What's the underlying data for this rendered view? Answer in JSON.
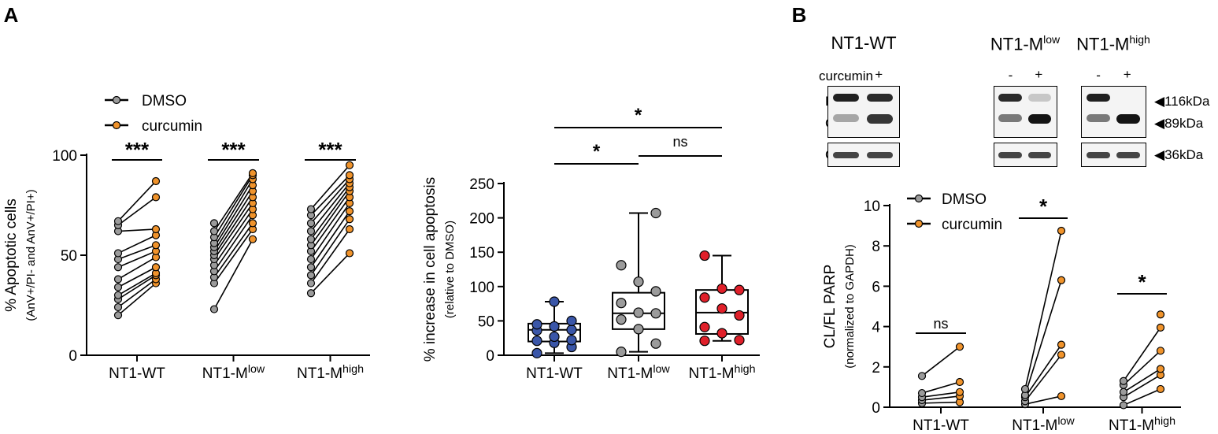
{
  "panelA": {
    "label": "A",
    "left": {
      "legend": [
        "DMSO",
        "curcumin"
      ],
      "ylabel_main": "% Apoptotic cells",
      "ylabel_sub": "(AnV+/PI- and AnV+/PI+)",
      "yticks": [
        "0",
        "50",
        "100"
      ],
      "groups": [
        {
          "name": "NT1-WT",
          "sig": "***"
        },
        {
          "name": "NT1-Mlow",
          "sig": "***"
        },
        {
          "name": "NT1-Mhigh",
          "sig": "***"
        }
      ]
    },
    "right": {
      "ylabel_main": "% increase in cell apoptosis",
      "ylabel_sub": "(relative to DMSO)",
      "yticks": [
        "0",
        "50",
        "100",
        "150",
        "200",
        "250"
      ],
      "groups": [
        "NT1-WT",
        "NT1-Mlow",
        "NT1-Mhigh"
      ],
      "brackets": [
        "*",
        "ns",
        "*"
      ]
    }
  },
  "panelB": {
    "label": "B",
    "blot": {
      "groups": [
        "NT1-WT",
        "NT1-Mlow",
        "NT1-Mhigh"
      ],
      "treatment_label": "curcumin",
      "signs": [
        "-",
        "+"
      ],
      "rows": [
        "FL PARP",
        "CL PARP",
        "GAPDH"
      ],
      "sizes": [
        "116kDa",
        "89kDa",
        "36kDa"
      ]
    },
    "chart": {
      "legend": [
        "DMSO",
        "curcumin"
      ],
      "ylabel_main": "CL/FL PARP",
      "ylabel_sub": "(normalized to GAPDH)",
      "yticks": [
        "0",
        "2",
        "4",
        "6",
        "8",
        "10"
      ],
      "groups": [
        {
          "name": "NT1-WT",
          "sig": "ns"
        },
        {
          "name": "NT1-Mlow",
          "sig": "*"
        },
        {
          "name": "NT1-Mhigh",
          "sig": "*"
        }
      ]
    }
  },
  "colors": {
    "dmso": "#9b9b9b",
    "curcumin": "#f0932b",
    "wt": "#3a56a8",
    "mlow": "#9b9b9b",
    "mhigh": "#e0202a"
  },
  "chart_data": [
    {
      "type": "scatter",
      "title": "",
      "ylabel": "% Apoptotic cells (AnV+/PI- and AnV+/PI+)",
      "ylim": [
        0,
        100
      ],
      "categories": [
        "NT1-WT",
        "NT1-Mlow",
        "NT1-Mhigh"
      ],
      "pairs": [
        {
          "group": "NT1-WT",
          "dmso": [
            20,
            24,
            28,
            30,
            34,
            38,
            44,
            48,
            51,
            62,
            65,
            67
          ],
          "curcumin": [
            36,
            38,
            40,
            41,
            44,
            49,
            52,
            55,
            60,
            63,
            79,
            87
          ]
        },
        {
          "group": "NT1-Mlow",
          "dmso": [
            23,
            36,
            39,
            42,
            45,
            48,
            50,
            52,
            54,
            56,
            59,
            62,
            66
          ],
          "curcumin": [
            58,
            63,
            66,
            70,
            73,
            76,
            79,
            82,
            85,
            88,
            90,
            91
          ]
        },
        {
          "group": "NT1-Mhigh",
          "dmso": [
            31,
            36,
            40,
            44,
            48,
            52,
            55,
            58,
            62,
            66,
            70,
            73
          ],
          "curcumin": [
            51,
            63,
            68,
            72,
            76,
            79,
            82,
            84,
            86,
            88,
            90,
            95
          ]
        }
      ]
    },
    {
      "type": "box",
      "title": "",
      "ylabel": "% increase in cell apoptosis (relative to DMSO)",
      "ylim": [
        0,
        250
      ],
      "categories": [
        "NT1-WT",
        "NT1-Mlow",
        "NT1-Mhigh"
      ],
      "series": [
        {
          "group": "NT1-WT",
          "min": 3,
          "q1": 20,
          "median": 37,
          "q3": 46,
          "max": 78,
          "points": [
            3,
            12,
            18,
            21,
            22,
            27,
            36,
            37,
            42,
            45,
            50,
            78
          ]
        },
        {
          "group": "NT1-Mlow",
          "min": 5,
          "q1": 38,
          "median": 61,
          "q3": 91,
          "max": 207,
          "points": [
            5,
            17,
            38,
            52,
            61,
            62,
            76,
            93,
            107,
            131,
            207
          ]
        },
        {
          "group": "NT1-Mhigh",
          "min": 21,
          "q1": 31,
          "median": 62,
          "q3": 95,
          "max": 145,
          "points": [
            21,
            22,
            32,
            41,
            58,
            68,
            84,
            95,
            97,
            145
          ]
        }
      ]
    },
    {
      "type": "scatter",
      "title": "",
      "ylabel": "CL/FL PARP (normalized to GAPDH)",
      "ylim": [
        0,
        10
      ],
      "categories": [
        "NT1-WT",
        "NT1-Mlow",
        "NT1-Mhigh"
      ],
      "pairs": [
        {
          "group": "NT1-WT",
          "dmso": [
            0.2,
            0.35,
            0.5,
            0.7,
            1.55
          ],
          "curcumin": [
            0.25,
            0.55,
            0.75,
            1.25,
            3.0
          ]
        },
        {
          "group": "NT1-Mlow",
          "dmso": [
            0.15,
            0.3,
            0.5,
            0.6,
            0.9
          ],
          "curcumin": [
            0.55,
            2.6,
            3.1,
            6.3,
            8.75
          ]
        },
        {
          "group": "NT1-Mhigh",
          "dmso": [
            0.1,
            0.5,
            0.75,
            1.1,
            1.3
          ],
          "curcumin": [
            0.9,
            1.6,
            1.9,
            2.8,
            3.95,
            4.6
          ]
        }
      ]
    }
  ]
}
